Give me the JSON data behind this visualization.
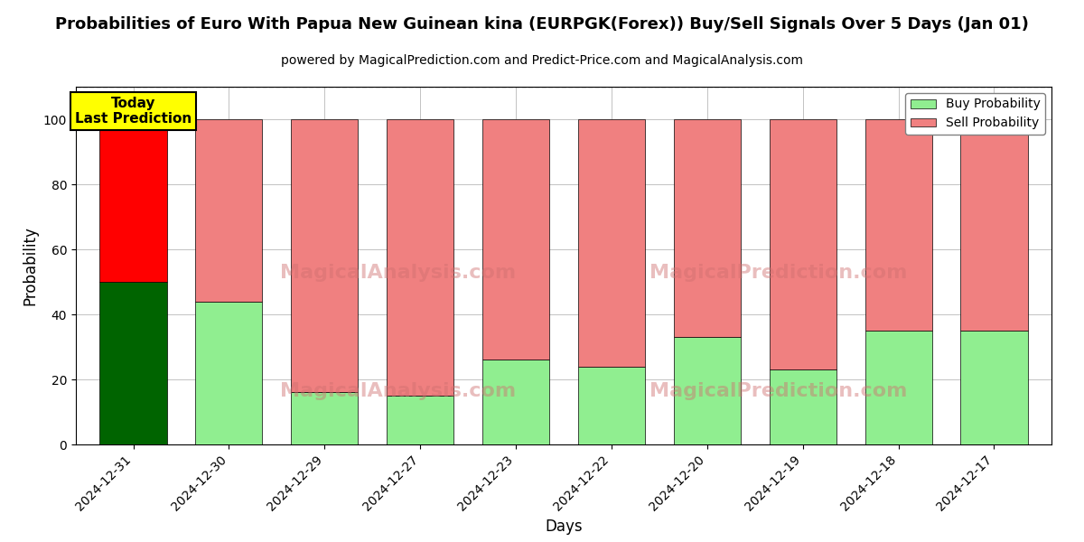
{
  "title": "Probabilities of Euro With Papua New Guinean kina (EURPGK(Forex)) Buy/Sell Signals Over 5 Days (Jan 01)",
  "subtitle": "powered by MagicalPrediction.com and Predict-Price.com and MagicalAnalysis.com",
  "xlabel": "Days",
  "ylabel": "Probability",
  "categories": [
    "2024-12-31",
    "2024-12-30",
    "2024-12-29",
    "2024-12-27",
    "2024-12-23",
    "2024-12-22",
    "2024-12-20",
    "2024-12-19",
    "2024-12-18",
    "2024-12-17"
  ],
  "buy_values": [
    50,
    44,
    16,
    15,
    26,
    24,
    33,
    23,
    35,
    35
  ],
  "sell_values": [
    50,
    56,
    84,
    85,
    74,
    76,
    67,
    77,
    65,
    65
  ],
  "today_bar_buy_color": "#006400",
  "today_bar_sell_color": "#ff0000",
  "other_bar_buy_color": "#90EE90",
  "other_bar_sell_color": "#F08080",
  "today_label_bg": "#ffff00",
  "today_label_text": "Today\nLast Prediction",
  "legend_buy_label": "Buy Probability",
  "legend_sell_label": "Sell Probability",
  "ylim": [
    0,
    110
  ],
  "dashed_line_y": 110,
  "watermark1": "MagicalAnalysis.com",
  "watermark2": "MagicalPrediction.com",
  "background_color": "#ffffff",
  "grid_color": "#aaaaaa",
  "title_fontsize": 13,
  "subtitle_fontsize": 10,
  "axis_label_fontsize": 12,
  "tick_fontsize": 10
}
